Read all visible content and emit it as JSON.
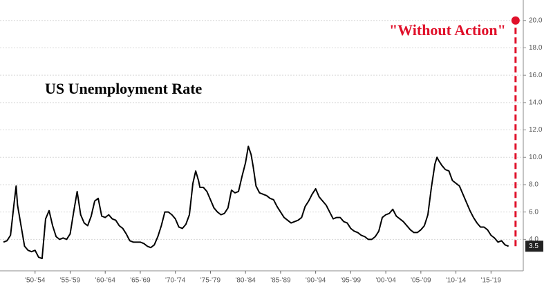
{
  "chart_data": {
    "type": "line",
    "title": "US Unemployment Rate",
    "xlim": [
      1947.5,
      2022.1
    ],
    "ylim": [
      1.7,
      21.5
    ],
    "xticks": [
      {
        "value": 1952.5,
        "label": "'50-'54"
      },
      {
        "value": 1957.5,
        "label": "'55-'59"
      },
      {
        "value": 1962.5,
        "label": "'60-'64"
      },
      {
        "value": 1967.5,
        "label": "'65-'69"
      },
      {
        "value": 1972.5,
        "label": "'70-'74"
      },
      {
        "value": 1977.5,
        "label": "'75-'79"
      },
      {
        "value": 1982.5,
        "label": "'80-'84"
      },
      {
        "value": 1987.5,
        "label": "'85-'89"
      },
      {
        "value": 1992.5,
        "label": "'90-'94"
      },
      {
        "value": 1997.5,
        "label": "'95-'99"
      },
      {
        "value": 2002.5,
        "label": "'00-'04"
      },
      {
        "value": 2007.5,
        "label": "'05-'09"
      },
      {
        "value": 2012.5,
        "label": "'10-'14"
      },
      {
        "value": 2017.5,
        "label": "'15-'19"
      }
    ],
    "yticks": [
      {
        "value": 4,
        "label": "4.0"
      },
      {
        "value": 6,
        "label": "6.0"
      },
      {
        "value": 8,
        "label": "8.0"
      },
      {
        "value": 10,
        "label": "10.0"
      },
      {
        "value": 12,
        "label": "12.0"
      },
      {
        "value": 14,
        "label": "14.0"
      },
      {
        "value": 16,
        "label": "16.0"
      },
      {
        "value": 18,
        "label": "18.0"
      },
      {
        "value": 20,
        "label": "20.0"
      }
    ],
    "grid": true,
    "series": [
      {
        "name": "US Unemployment Rate",
        "color": "#000000",
        "x": [
          1948,
          1948.5,
          1949,
          1949.5,
          1949.8,
          1950,
          1950.5,
          1951,
          1951.5,
          1952,
          1952.5,
          1953,
          1953.5,
          1954,
          1954.5,
          1955,
          1955.5,
          1956,
          1956.5,
          1957,
          1957.5,
          1958,
          1958.5,
          1959,
          1959.5,
          1960,
          1960.5,
          1961,
          1961.5,
          1962,
          1962.5,
          1963,
          1963.5,
          1964,
          1964.5,
          1965,
          1965.5,
          1966,
          1966.5,
          1967,
          1967.5,
          1968,
          1968.5,
          1969,
          1969.5,
          1970,
          1970.5,
          1971,
          1971.5,
          1972,
          1972.5,
          1973,
          1973.5,
          1974,
          1974.5,
          1975,
          1975.4,
          1975.8,
          1976,
          1976.5,
          1977,
          1977.5,
          1978,
          1978.5,
          1979,
          1979.5,
          1980,
          1980.5,
          1981,
          1981.5,
          1982,
          1982.5,
          1982.9,
          1983.3,
          1983.6,
          1984,
          1984.5,
          1985,
          1985.5,
          1986,
          1986.5,
          1987,
          1987.5,
          1988,
          1988.5,
          1989,
          1989.5,
          1990,
          1990.5,
          1991,
          1991.5,
          1992,
          1992.5,
          1993,
          1993.5,
          1994,
          1994.5,
          1995,
          1995.5,
          1996,
          1996.5,
          1997,
          1997.5,
          1998,
          1998.5,
          1999,
          1999.5,
          2000,
          2000.5,
          2001,
          2001.5,
          2002,
          2002.5,
          2003,
          2003.5,
          2004,
          2004.5,
          2005,
          2005.5,
          2006,
          2006.5,
          2007,
          2007.5,
          2008,
          2008.5,
          2009,
          2009.5,
          2009.8,
          2010,
          2010.5,
          2011,
          2011.5,
          2012,
          2012.5,
          2013,
          2013.5,
          2014,
          2014.5,
          2015,
          2015.5,
          2016,
          2016.5,
          2017,
          2017.5,
          2018,
          2018.5,
          2019,
          2019.5,
          2020
        ],
        "values": [
          3.8,
          3.9,
          4.3,
          6.6,
          7.9,
          6.5,
          5.0,
          3.5,
          3.2,
          3.1,
          3.2,
          2.7,
          2.6,
          5.5,
          6.1,
          5.0,
          4.2,
          4.0,
          4.1,
          4.0,
          4.4,
          6.0,
          7.5,
          5.8,
          5.2,
          5.0,
          5.7,
          6.8,
          7.0,
          5.7,
          5.6,
          5.8,
          5.5,
          5.4,
          5.0,
          4.8,
          4.4,
          3.9,
          3.8,
          3.8,
          3.8,
          3.7,
          3.5,
          3.4,
          3.6,
          4.2,
          5.0,
          6.0,
          6.0,
          5.8,
          5.5,
          4.9,
          4.8,
          5.1,
          5.8,
          8.1,
          9.0,
          8.3,
          7.8,
          7.8,
          7.5,
          6.9,
          6.3,
          6.0,
          5.8,
          5.9,
          6.3,
          7.6,
          7.4,
          7.5,
          8.6,
          9.6,
          10.8,
          10.2,
          9.3,
          7.9,
          7.4,
          7.3,
          7.2,
          7.0,
          6.9,
          6.4,
          6.0,
          5.6,
          5.4,
          5.2,
          5.3,
          5.4,
          5.6,
          6.4,
          6.8,
          7.3,
          7.7,
          7.1,
          6.8,
          6.5,
          6.0,
          5.5,
          5.6,
          5.6,
          5.3,
          5.2,
          4.8,
          4.6,
          4.5,
          4.3,
          4.2,
          4.0,
          4.0,
          4.2,
          4.6,
          5.6,
          5.8,
          5.9,
          6.2,
          5.7,
          5.5,
          5.3,
          5.0,
          4.7,
          4.5,
          4.5,
          4.7,
          5.0,
          5.8,
          7.8,
          9.5,
          10.0,
          9.8,
          9.4,
          9.1,
          9.0,
          8.3,
          8.1,
          7.9,
          7.3,
          6.7,
          6.1,
          5.6,
          5.2,
          4.9,
          4.9,
          4.7,
          4.3,
          4.1,
          3.8,
          3.9,
          3.6,
          3.5
        ]
      },
      {
        "name": "\"Without Action\"",
        "color": "#e0102a",
        "dashed": true,
        "x": [
          2021.0,
          2021.0
        ],
        "values": [
          3.5,
          20
        ]
      }
    ]
  }
}
